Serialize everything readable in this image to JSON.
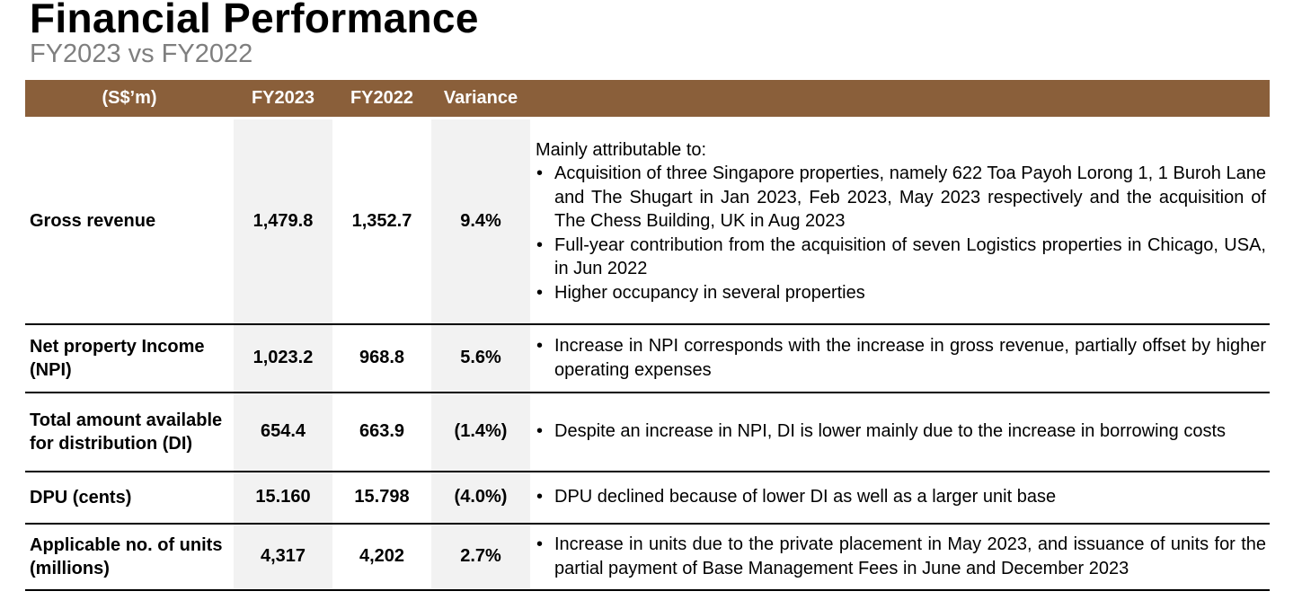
{
  "title": "Financial Performance",
  "subtitle": "FY2023 vs FY2022",
  "table": {
    "headers": [
      "(S$’m)",
      "FY2023",
      "FY2022",
      "Variance",
      ""
    ],
    "rows": [
      {
        "label": "Gross revenue",
        "fy2023": "1,479.8",
        "fy2022": "1,352.7",
        "variance": "9.4%",
        "intro": "Mainly attributable to:",
        "bullets": [
          "Acquisition of three Singapore properties, namely 622 Toa Payoh Lorong 1, 1 Buroh Lane and The Shugart in Jan 2023, Feb 2023, May 2023 respectively and the acquisition of The Chess Building, UK in Aug 2023",
          "Full-year contribution from the acquisition of seven Logistics properties in Chicago, USA, in Jun 2022",
          "Higher occupancy in several properties"
        ]
      },
      {
        "label": "Net property Income (NPI)",
        "fy2023": "1,023.2",
        "fy2022": "968.8",
        "variance": "5.6%",
        "bullets": [
          "Increase in NPI corresponds with the increase in gross revenue, partially offset by higher operating expenses"
        ]
      },
      {
        "label": "Total amount available for distribution (DI)",
        "fy2023": "654.4",
        "fy2022": "663.9",
        "variance": "(1.4%)",
        "bullets": [
          "Despite an increase in NPI, DI is lower mainly due to the increase in borrowing costs"
        ]
      },
      {
        "label": "DPU (cents)",
        "fy2023": "15.160",
        "fy2022": "15.798",
        "variance": "(4.0%)",
        "bullets": [
          "DPU declined because of lower DI as well as a larger unit base"
        ]
      },
      {
        "label": "Applicable no. of units (millions)",
        "fy2023": "4,317",
        "fy2022": "4,202",
        "variance": "2.7%",
        "bullets": [
          "Increase in units due to the private placement in May 2023, and issuance of units for the partial payment of Base Management Fees in June and December 2023"
        ]
      }
    ]
  },
  "colors": {
    "header_background": "#8a5f3a",
    "header_text": "#ffffff",
    "subtitle_text": "#7f7f7f",
    "column_shade": "#f2f2f2"
  }
}
